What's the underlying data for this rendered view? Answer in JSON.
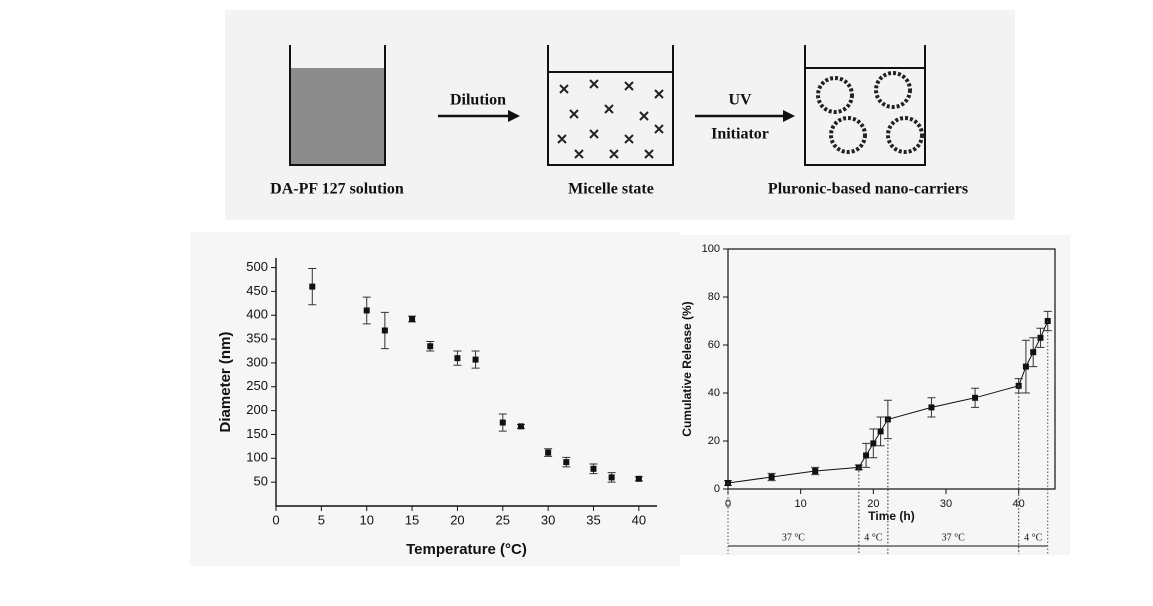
{
  "diagram": {
    "stages": [
      "DA-PF 127 solution",
      "Micelle state",
      "Pluronic-based nano-carriers"
    ],
    "arrow_1": "Dilution",
    "arrow_2": [
      "UV",
      "Initiator"
    ]
  },
  "chart_data": [
    {
      "type": "scatter",
      "x_label": "Temperature (°C)",
      "y_label": "Diameter (nm)",
      "color": "#111111",
      "x": [
        4,
        10,
        12,
        15,
        17,
        20,
        22,
        25,
        27,
        30,
        32,
        35,
        37,
        40
      ],
      "values": [
        460,
        410,
        368,
        392,
        335,
        310,
        307,
        175,
        167,
        112,
        92,
        78,
        60,
        57
      ],
      "errors": [
        38,
        28,
        38,
        6,
        10,
        15,
        18,
        18,
        4,
        8,
        10,
        10,
        10,
        4
      ],
      "xlim": [
        0,
        42
      ],
      "ylim": [
        0,
        520
      ],
      "xticks": [
        0,
        5,
        10,
        15,
        20,
        25,
        30,
        35,
        40
      ],
      "yticks": [
        50,
        100,
        150,
        200,
        250,
        300,
        350,
        400,
        450,
        500
      ]
    },
    {
      "type": "line",
      "x_label": "Time (h)",
      "y_label": "Cumulative Release (%)",
      "color": "#111111",
      "x": [
        0,
        6,
        12,
        18,
        19,
        20,
        21,
        22,
        28,
        34,
        40,
        41,
        42,
        43,
        44
      ],
      "values": [
        2.5,
        5,
        7.5,
        9,
        14,
        19,
        24,
        29,
        34,
        38,
        43,
        51,
        57,
        63,
        70
      ],
      "errors": [
        1,
        1.5,
        1.5,
        1,
        5,
        6,
        6,
        8,
        4,
        4,
        3,
        11,
        6,
        4,
        4
      ],
      "xlim": [
        0,
        45
      ],
      "ylim": [
        0,
        100
      ],
      "xticks": [
        0,
        10,
        20,
        30,
        40
      ],
      "yticks": [
        0,
        20,
        40,
        60,
        80,
        100
      ],
      "phases": [
        {
          "label": "37 °C",
          "start": 0,
          "end": 18
        },
        {
          "label": "4 °C",
          "start": 18,
          "end": 22
        },
        {
          "label": "37 °C",
          "start": 22,
          "end": 40
        },
        {
          "label": "4 °C",
          "start": 40,
          "end": 44
        }
      ]
    }
  ]
}
